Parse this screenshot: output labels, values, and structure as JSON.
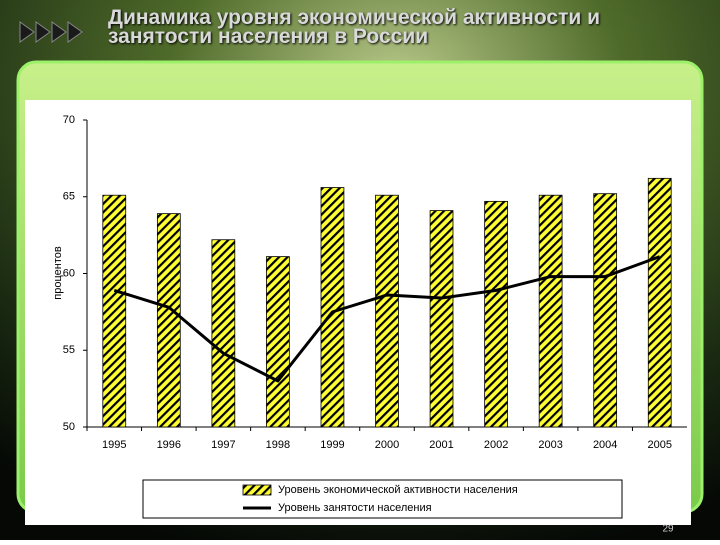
{
  "chart_data": {
    "type": "bar-line",
    "title": "Динамика уровня экономической активности и занятости населения в России",
    "y_label": "процентов",
    "categories": [
      "1995",
      "1996",
      "1997",
      "1998",
      "1999",
      "2000",
      "2001",
      "2002",
      "2003",
      "2004",
      "2005"
    ],
    "series": [
      {
        "name": "Уровень экономической активности населения",
        "type": "bar",
        "color": "#ffff33",
        "values": [
          65.1,
          63.9,
          62.2,
          61.1,
          65.6,
          65.1,
          64.1,
          64.7,
          65.1,
          65.2,
          66.2
        ]
      },
      {
        "name": "Уровень занятости населения",
        "type": "line",
        "color": "#000000",
        "values": [
          58.9,
          57.8,
          54.8,
          53.0,
          57.5,
          58.6,
          58.4,
          58.9,
          59.8,
          59.8,
          61.1
        ]
      }
    ],
    "ylim": [
      50,
      70
    ],
    "yticks": [
      50,
      55,
      60,
      65,
      70
    ],
    "grid": false
  },
  "slide": {
    "page_number": "29"
  }
}
